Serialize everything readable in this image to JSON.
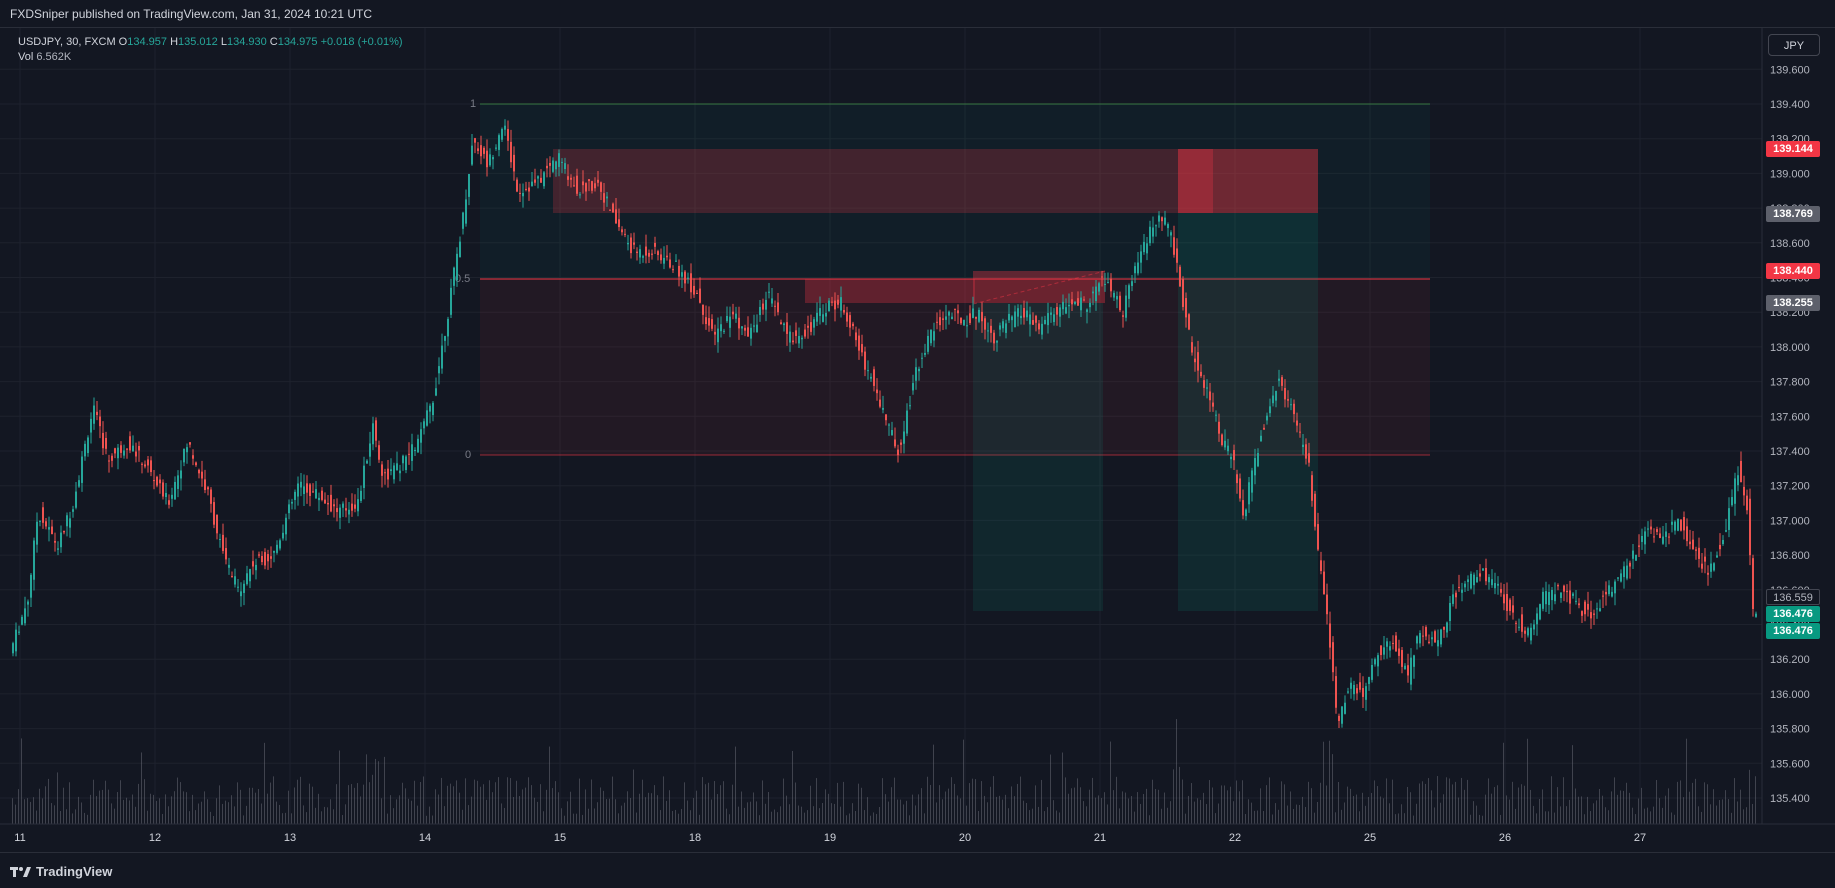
{
  "header": {
    "published_text": "FXDSniper published on TradingView.com, Jan 31, 2024 10:21 UTC"
  },
  "legend": {
    "symbol": "USDJPY, 30, FXCM",
    "open_label": "O",
    "open_value": "134.957",
    "high_label": "H",
    "high_value": "135.012",
    "low_label": "L",
    "low_value": "134.930",
    "close_label": "C",
    "close_value": "134.975",
    "change": "+0.018 (+0.01%)",
    "vol_label": "Vol",
    "vol_value": "6.562K"
  },
  "currency_button": "JPY",
  "price_axis": {
    "ticks": [
      "139.600",
      "139.400",
      "139.200",
      "139.000",
      "138.800",
      "138.600",
      "138.400",
      "138.200",
      "138.000",
      "137.800",
      "137.600",
      "137.400",
      "137.200",
      "137.000",
      "136.800",
      "136.600",
      "136.400",
      "136.200",
      "136.000",
      "135.800",
      "135.600",
      "135.400"
    ]
  },
  "time_axis": {
    "labels": [
      "11",
      "12",
      "13",
      "14",
      "15",
      "18",
      "19",
      "20",
      "21",
      "22",
      "25",
      "26",
      "27"
    ]
  },
  "price_tags": [
    {
      "label": "139.144",
      "style": "red"
    },
    {
      "label": "138.769",
      "style": "gray"
    },
    {
      "label": "138.440",
      "style": "red"
    },
    {
      "label": "138.255",
      "style": "gray"
    },
    {
      "label": "136.559",
      "style": "outline"
    },
    {
      "label": "136.476",
      "style": "green"
    },
    {
      "label": "136.476",
      "style": "green"
    }
  ],
  "fib_levels": {
    "top_label": "1",
    "mid_label": "0.5",
    "bottom_label": "0"
  },
  "colors": {
    "background": "#131722",
    "bull": "#26a69a",
    "bear": "#ef5350",
    "red_zone": "#f23645",
    "green_zone": "#089981"
  },
  "footer": {
    "brand": "TradingView"
  }
}
